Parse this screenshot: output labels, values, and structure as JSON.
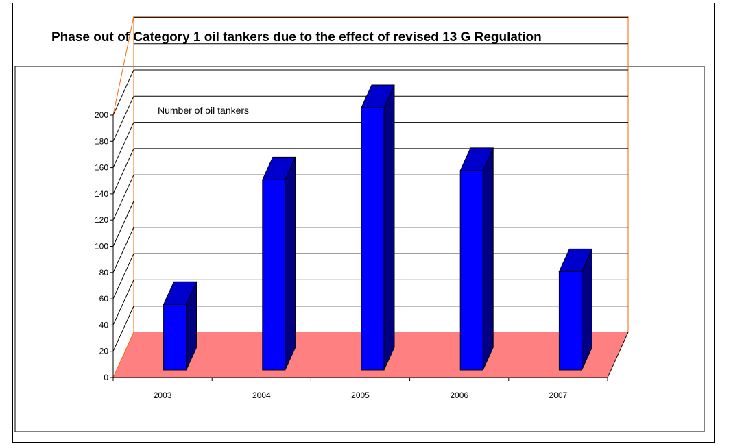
{
  "chart_data": {
    "type": "bar",
    "title": "Phase out of Category 1 oil tankers due to the effect of revised 13 G Regulation",
    "annotation": "Number of oil  tankers",
    "categories": [
      "2003",
      "2004",
      "2005",
      "2006",
      "2007"
    ],
    "values": [
      50,
      145,
      200,
      152,
      75
    ],
    "ylim": [
      0,
      200
    ],
    "yticks": [
      "0",
      "20",
      "40",
      "60",
      "80",
      "100",
      "120",
      "140",
      "160",
      "180",
      "200"
    ],
    "xlabel": "",
    "ylabel": "",
    "grid": true,
    "style": "3d-column",
    "colors": {
      "bar_front": "#0000ff",
      "bar_top": "#0000cc",
      "bar_side": "#000080",
      "floor": "#ff8080",
      "walls": "#ff6600",
      "gridline": "#000000"
    }
  }
}
